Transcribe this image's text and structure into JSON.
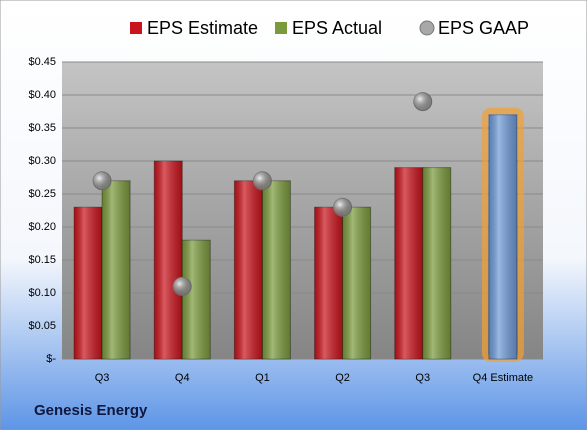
{
  "chart_data": {
    "type": "bar",
    "categories": [
      "Q3",
      "Q4",
      "Q1",
      "Q2",
      "Q3",
      "Q4 Estimate"
    ],
    "series": [
      {
        "name": "EPS Estimate",
        "color": "#c8141c",
        "values": [
          0.23,
          0.3,
          0.27,
          0.23,
          0.29,
          0.37
        ]
      },
      {
        "name": "EPS Actual",
        "color": "#7a9a3c",
        "values": [
          0.27,
          0.18,
          0.27,
          0.23,
          0.29,
          null
        ]
      },
      {
        "name": "EPS GAAP",
        "type": "scatter",
        "color": "#a8a8a8",
        "values": [
          0.27,
          0.11,
          0.27,
          0.23,
          0.39,
          null
        ]
      }
    ],
    "highlight": {
      "index": 5,
      "color": "#6f9ad8",
      "glow": "#f5a030"
    },
    "ylim": [
      0,
      0.45
    ],
    "yticks": [
      {
        "value": 0,
        "label": "$-"
      },
      {
        "value": 0.05,
        "label": "$0.05"
      },
      {
        "value": 0.1,
        "label": "$0.10"
      },
      {
        "value": 0.15,
        "label": "$0.15"
      },
      {
        "value": 0.2,
        "label": "$0.20"
      },
      {
        "value": 0.25,
        "label": "$0.25"
      },
      {
        "value": 0.3,
        "label": "$0.30"
      },
      {
        "value": 0.35,
        "label": "$0.35"
      },
      {
        "value": 0.4,
        "label": "$0.40"
      },
      {
        "value": 0.45,
        "label": "$0.45"
      }
    ],
    "grid": true,
    "caption": "Genesis Energy"
  }
}
